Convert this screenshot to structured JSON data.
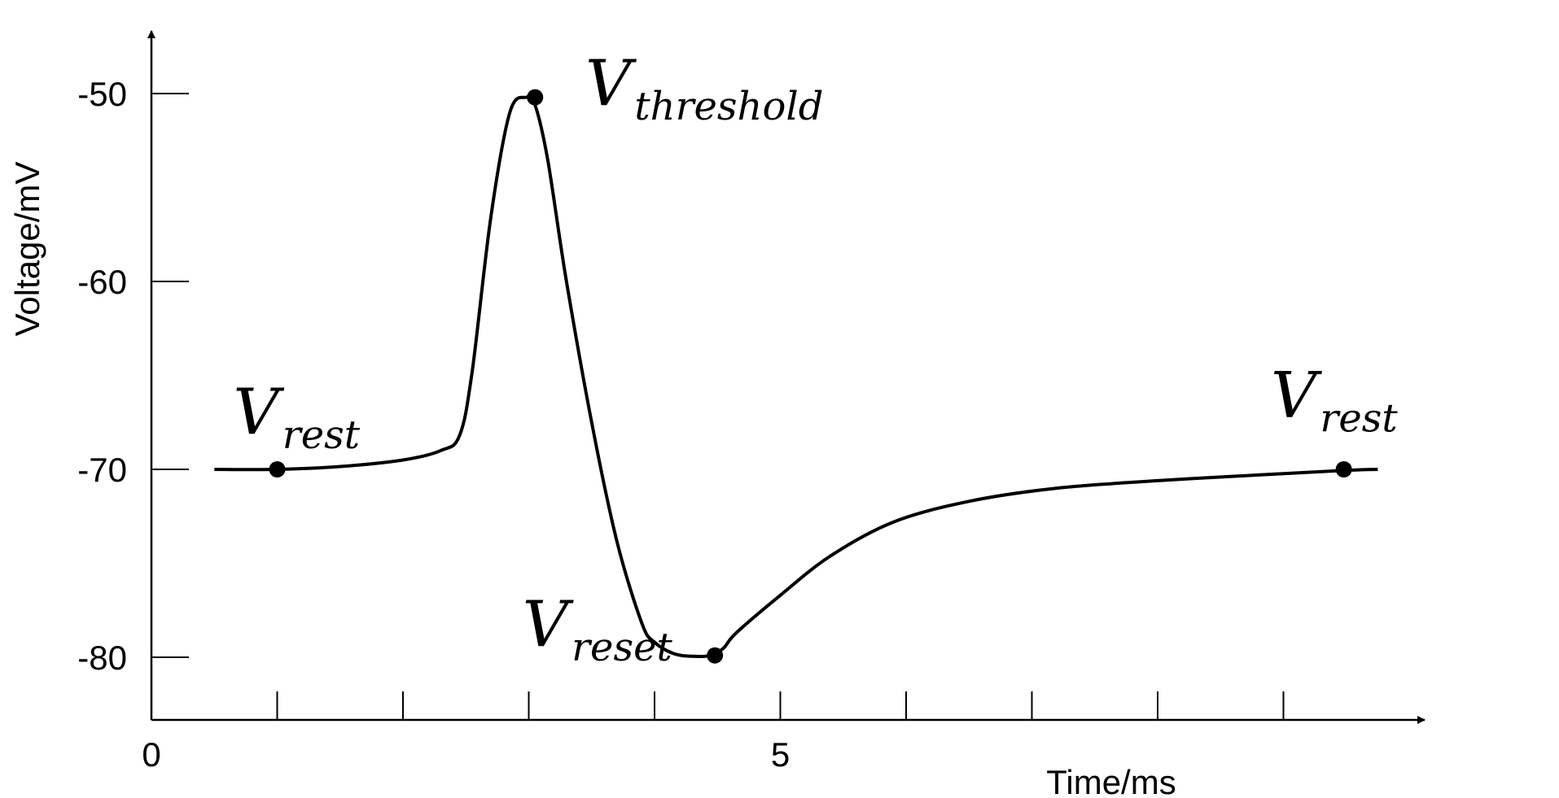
{
  "chart_data": {
    "type": "line",
    "xlabel": "Time/ms",
    "ylabel": "Voltage/mV",
    "xlim": [
      0,
      10.5
    ],
    "ylim": [
      -83.3,
      -43.5
    ],
    "x_tick_values": [
      1,
      2,
      3,
      4,
      5,
      6,
      7,
      8,
      9
    ],
    "x_tick_labels": [
      {
        "value": 0,
        "label": "0"
      },
      {
        "value": 5,
        "label": "5"
      }
    ],
    "y_ticks": [
      {
        "value": -50,
        "label": "-50"
      },
      {
        "value": -60,
        "label": "-60"
      },
      {
        "value": -70,
        "label": "-70"
      },
      {
        "value": -80,
        "label": "-80"
      }
    ],
    "series": [
      {
        "x": [
          0.5,
          1.0,
          1.5,
          2.0,
          2.3,
          2.45,
          2.55,
          2.7,
          2.85,
          2.98,
          3.05,
          3.15,
          3.3,
          3.5,
          3.7,
          3.9,
          4.0,
          4.15,
          4.3,
          4.45,
          4.55,
          4.65,
          5.0,
          5.4,
          5.9,
          6.5,
          7.2,
          8.0,
          8.8,
          9.5,
          9.75
        ],
        "y": [
          -70.0,
          -70.0,
          -69.85,
          -69.5,
          -69.0,
          -68.2,
          -64.8,
          -56.5,
          -51.0,
          -50.2,
          -50.6,
          -53.5,
          -60.0,
          -67.5,
          -73.8,
          -78.2,
          -79.2,
          -79.8,
          -79.95,
          -79.9,
          -79.5,
          -78.7,
          -76.7,
          -74.6,
          -72.8,
          -71.7,
          -71.0,
          -70.6,
          -70.3,
          -70.05,
          -70.0
        ]
      }
    ],
    "points": [
      {
        "x": 1.0,
        "y": -70.0
      },
      {
        "x": 3.05,
        "y": -50.2
      },
      {
        "x": 4.48,
        "y": -79.9
      },
      {
        "x": 9.48,
        "y": -70.0
      }
    ],
    "annotations": [
      {
        "main": "V",
        "sub": "rest",
        "x": 0.65,
        "y": -68.1
      },
      {
        "main": "V",
        "sub": "threshold",
        "x": 3.45,
        "y": -50.6
      },
      {
        "main": "V",
        "sub": "reset",
        "x": 2.95,
        "y": -79.4
      },
      {
        "main": "V",
        "sub": "rest",
        "x": 8.9,
        "y": -67.2
      }
    ],
    "grid": false,
    "legend": "none"
  }
}
